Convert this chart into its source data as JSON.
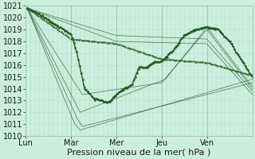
{
  "xlabel": "Pression niveau de la mer( hPa )",
  "ylim": [
    1010,
    1021
  ],
  "yticks": [
    1010,
    1011,
    1012,
    1013,
    1014,
    1015,
    1016,
    1017,
    1018,
    1019,
    1020,
    1021
  ],
  "bg_color": "#cceedd",
  "grid_color_minor": "#b8ddd0",
  "grid_color_major": "#99ccbb",
  "line_color": "#1e5e1e",
  "day_labels": [
    "Lun",
    "Mar",
    "Mer",
    "Jeu",
    "Ven"
  ],
  "day_positions": [
    0,
    60,
    120,
    180,
    240
  ],
  "total_steps": 300,
  "xlabel_fontsize": 8,
  "ytick_fontsize": 7,
  "xtick_fontsize": 7
}
